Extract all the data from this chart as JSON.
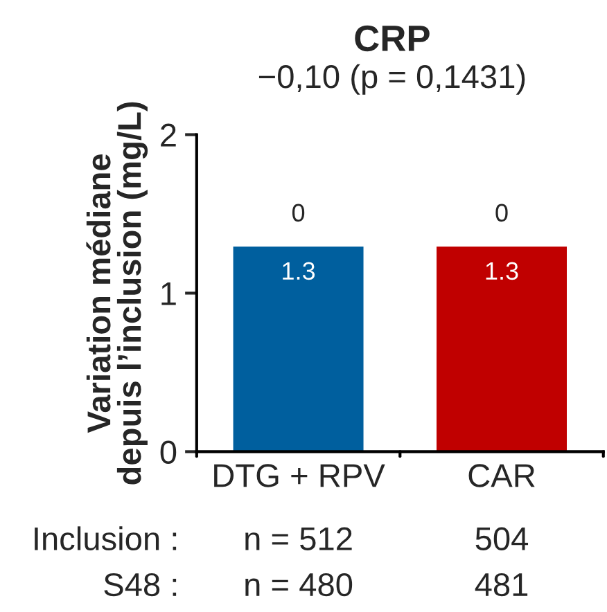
{
  "chart_data": {
    "type": "bar",
    "title": "CRP",
    "subtitle": "−0,10 (p = 0,1431)",
    "ylabel": "Variation médiane\ndepuis l’inclusion (mg/L)",
    "categories": [
      "DTG + RPV",
      "CAR"
    ],
    "values": [
      1.3,
      1.3
    ],
    "colors": [
      "#005f9e",
      "#c00000"
    ],
    "data_labels": true,
    "ylim": [
      0,
      2
    ],
    "yticks": [
      0,
      1,
      2
    ],
    "grid": false,
    "annotations": [
      {
        "text": "0",
        "x": "DTG + RPV",
        "y": 1.3
      },
      {
        "text": "0",
        "x": "CAR",
        "y": 1.3
      },
      "Inclusion :",
      "n = 512",
      "504",
      "S48 :",
      "n = 480",
      "481"
    ]
  }
}
